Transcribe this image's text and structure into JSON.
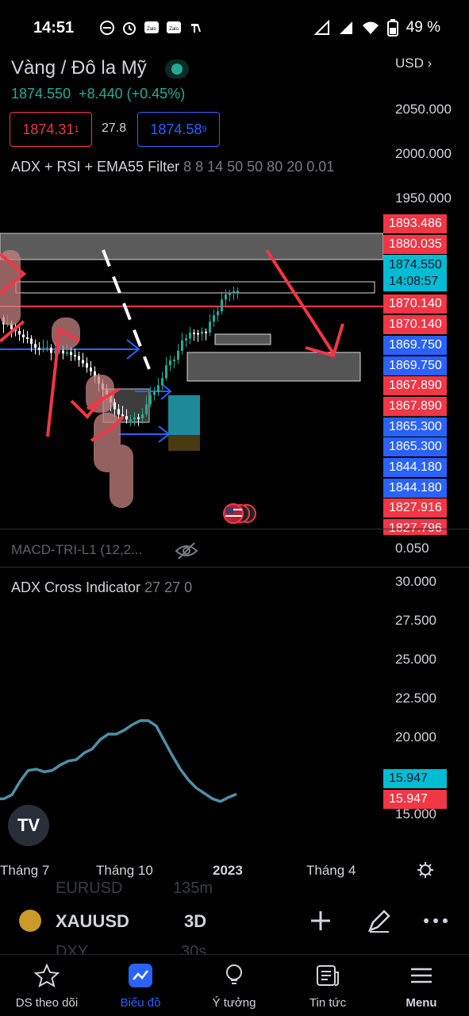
{
  "status_bar": {
    "time": "14:51",
    "battery": "49 %"
  },
  "header": {
    "title": "Vàng / Đô la Mỹ",
    "last_price": "1874.550",
    "change": "+8.440 (+0.45%)",
    "sell_price": "1874.31",
    "sell_sup": "1",
    "spread": "27.8",
    "buy_price": "1874.58",
    "buy_sup": "9",
    "indicator_name": "ADX + RSI + EMA55 Filter",
    "indicator_params": "8 8 14 50 50 80 20 0.01",
    "currency": "USD"
  },
  "price_axis": [
    "2050.000",
    "2000.000",
    "1950.000"
  ],
  "price_badges": [
    {
      "value": "1893.486",
      "color": "red"
    },
    {
      "value": "1880.035",
      "color": "red"
    },
    {
      "value": "1874.550",
      "sub": "14:08:57",
      "color": "teal"
    },
    {
      "value": "1870.140",
      "color": "red"
    },
    {
      "value": "1870.140",
      "color": "red"
    },
    {
      "value": "1869.750",
      "color": "blue"
    },
    {
      "value": "1869.750",
      "color": "blue"
    },
    {
      "value": "1867.890",
      "color": "red"
    },
    {
      "value": "1867.890",
      "color": "red"
    },
    {
      "value": "1865.300",
      "color": "blue"
    },
    {
      "value": "1865.300",
      "color": "blue"
    },
    {
      "value": "1844.180",
      "color": "blue"
    },
    {
      "value": "1844.180",
      "color": "blue"
    },
    {
      "value": "1827.916",
      "color": "red"
    },
    {
      "value": "1827.796",
      "color": "red"
    }
  ],
  "macd": {
    "name": "MACD-TRI-L1 (12,2...",
    "axis_value": "0.050"
  },
  "adx": {
    "name": "ADX Cross Indicator",
    "params": "27 27 0",
    "axis": [
      "30.000",
      "27.500",
      "25.000",
      "22.500",
      "20.000",
      "15.000"
    ],
    "badge_teal": "15.947",
    "badge_red": "15.947"
  },
  "time_axis": [
    "Tháng 7",
    "Tháng 10",
    "2023",
    "Tháng 4"
  ],
  "toolbar": {
    "ghost_top": "EURUSD",
    "ghost_top_tf": "135m",
    "symbol": "XAUUSD",
    "timeframe": "3D",
    "ghost_bottom": "DXY",
    "ghost_bottom_tf": "30s"
  },
  "nav": [
    "DS theo dõi",
    "Biểu đồ",
    "Ý tưởng",
    "Tin tức",
    "Menu"
  ],
  "colors": {
    "up": "#22ab94",
    "down": "#ffffff",
    "accent": "#2962ff",
    "sell": "#f23645",
    "adx_line": "#4f8fa6"
  },
  "chart_data": {
    "type": "line",
    "title": "ADX Cross Indicator",
    "x": [
      0,
      1,
      2,
      3,
      4,
      5,
      6,
      7,
      8,
      9,
      10,
      11,
      12,
      13,
      14,
      15,
      16,
      17,
      18,
      19,
      20,
      21,
      22,
      23,
      24,
      25,
      26,
      27,
      28,
      29,
      30
    ],
    "values": [
      15.6,
      15.6,
      15.9,
      16.9,
      17.7,
      17.8,
      17.6,
      17.7,
      18.1,
      18.4,
      18.5,
      19.0,
      19.3,
      20.0,
      20.4,
      20.4,
      20.7,
      21.1,
      21.4,
      21.4,
      21.0,
      19.9,
      18.8,
      17.8,
      17.0,
      16.4,
      16.0,
      15.6,
      15.4,
      15.7,
      15.95
    ],
    "ylim": [
      14.5,
      31
    ],
    "yticks": [
      15,
      20,
      22.5,
      25,
      27.5,
      30
    ]
  }
}
